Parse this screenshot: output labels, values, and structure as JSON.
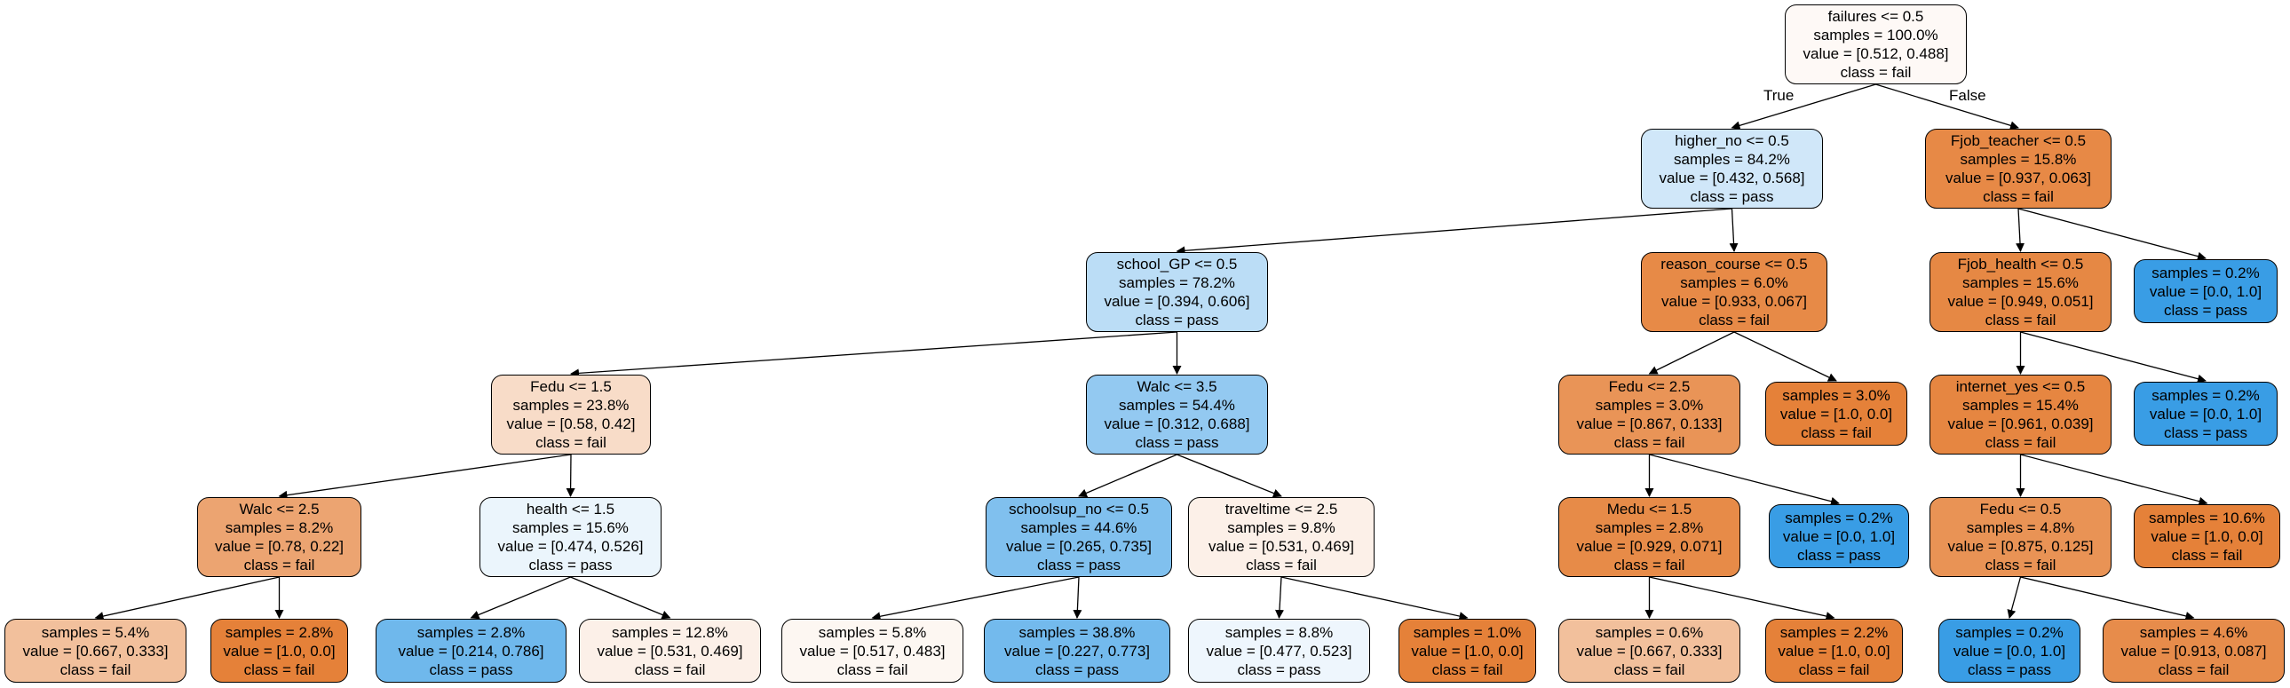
{
  "edge_labels": {
    "true_label": "True",
    "false_label": "False"
  },
  "nodes": {
    "root": {
      "lines": [
        "failures <= 0.5",
        "samples = 100.0%",
        "value = [0.512, 0.488]",
        "class = fail"
      ],
      "color": "#fef9f6"
    },
    "higher": {
      "lines": [
        "higher_no <= 0.5",
        "samples = 84.2%",
        "value = [0.432, 0.568]",
        "class = pass"
      ],
      "color": "#d0e7f9"
    },
    "fjob_teacher": {
      "lines": [
        "Fjob_teacher <= 0.5",
        "samples = 15.8%",
        "value = [0.937, 0.063]",
        "class = fail"
      ],
      "color": "#e78946"
    },
    "school_gp": {
      "lines": [
        "school_GP <= 0.5",
        "samples = 78.2%",
        "value = [0.394, 0.606]",
        "class = pass"
      ],
      "color": "#bbddf6"
    },
    "reason_course": {
      "lines": [
        "reason_course <= 0.5",
        "samples = 6.0%",
        "value = [0.933, 0.067]",
        "class = fail"
      ],
      "color": "#e78a47"
    },
    "fjob_health": {
      "lines": [
        "Fjob_health <= 0.5",
        "samples = 15.6%",
        "value = [0.949, 0.051]",
        "class = fail"
      ],
      "color": "#e68844"
    },
    "leaf_fjob_teacher_r": {
      "lines": [
        "samples = 0.2%",
        "value = [0.0, 1.0]",
        "class = pass"
      ],
      "color": "#399de5"
    },
    "fedu_15": {
      "lines": [
        "Fedu <= 1.5",
        "samples = 23.8%",
        "value = [0.58, 0.42]",
        "class = fail"
      ],
      "color": "#f8dcc8"
    },
    "walc_35": {
      "lines": [
        "Walc <= 3.5",
        "samples = 54.4%",
        "value = [0.312, 0.688]",
        "class = pass"
      ],
      "color": "#93c9f1"
    },
    "fedu_25": {
      "lines": [
        "Fedu <= 2.5",
        "samples = 3.0%",
        "value = [0.867, 0.133]",
        "class = fail"
      ],
      "color": "#e99457"
    },
    "leaf_reason_r": {
      "lines": [
        "samples = 3.0%",
        "value = [1.0, 0.0]",
        "class = fail"
      ],
      "color": "#e58139"
    },
    "internet": {
      "lines": [
        "internet_yes <= 0.5",
        "samples = 15.4%",
        "value = [0.961, 0.039]",
        "class = fail"
      ],
      "color": "#e68641"
    },
    "leaf_fjob_health_r": {
      "lines": [
        "samples = 0.2%",
        "value = [0.0, 1.0]",
        "class = pass"
      ],
      "color": "#399de5"
    },
    "walc_25": {
      "lines": [
        "Walc <= 2.5",
        "samples = 8.2%",
        "value = [0.78, 0.22]",
        "class = fail"
      ],
      "color": "#eca471"
    },
    "health": {
      "lines": [
        "health <= 1.5",
        "samples = 15.6%",
        "value = [0.474, 0.526]",
        "class = pass"
      ],
      "color": "#ebf5fc"
    },
    "schoolsup": {
      "lines": [
        "schoolsup_no <= 0.5",
        "samples = 44.6%",
        "value = [0.265, 0.735]",
        "class = pass"
      ],
      "color": "#80c0ee"
    },
    "traveltime": {
      "lines": [
        "traveltime <= 2.5",
        "samples = 9.8%",
        "value = [0.531, 0.469]",
        "class = fail"
      ],
      "color": "#fcf0e8"
    },
    "medu": {
      "lines": [
        "Medu <= 1.5",
        "samples = 2.8%",
        "value = [0.929, 0.071]",
        "class = fail"
      ],
      "color": "#e78b48"
    },
    "leaf_fedu25_r": {
      "lines": [
        "samples = 0.2%",
        "value = [0.0, 1.0]",
        "class = pass"
      ],
      "color": "#399de5"
    },
    "fedu_05": {
      "lines": [
        "Fedu <= 0.5",
        "samples = 4.8%",
        "value = [0.875, 0.125]",
        "class = fail"
      ],
      "color": "#e99355"
    },
    "leaf_internet_r": {
      "lines": [
        "samples = 10.6%",
        "value = [1.0, 0.0]",
        "class = fail"
      ],
      "color": "#e58139"
    },
    "leaf_1": {
      "lines": [
        "samples = 5.4%",
        "value = [0.667, 0.333]",
        "class = fail"
      ],
      "color": "#f2c09c"
    },
    "leaf_2": {
      "lines": [
        "samples = 2.8%",
        "value = [1.0, 0.0]",
        "class = fail"
      ],
      "color": "#e58139"
    },
    "leaf_3": {
      "lines": [
        "samples = 2.8%",
        "value = [0.214, 0.786]",
        "class = pass"
      ],
      "color": "#6fb8ec"
    },
    "leaf_4": {
      "lines": [
        "samples = 12.8%",
        "value = [0.531, 0.469]",
        "class = fail"
      ],
      "color": "#fcf0e8"
    },
    "leaf_5": {
      "lines": [
        "samples = 5.8%",
        "value = [0.517, 0.483]",
        "class = fail"
      ],
      "color": "#fdf7f2"
    },
    "leaf_6": {
      "lines": [
        "samples = 38.8%",
        "value = [0.227, 0.773]",
        "class = pass"
      ],
      "color": "#73baed"
    },
    "leaf_7": {
      "lines": [
        "samples = 8.8%",
        "value = [0.477, 0.523]",
        "class = pass"
      ],
      "color": "#eef6fd"
    },
    "leaf_8": {
      "lines": [
        "samples = 1.0%",
        "value = [1.0, 0.0]",
        "class = fail"
      ],
      "color": "#e58139"
    },
    "leaf_9": {
      "lines": [
        "samples = 0.6%",
        "value = [0.667, 0.333]",
        "class = fail"
      ],
      "color": "#f2c09c"
    },
    "leaf_10": {
      "lines": [
        "samples = 2.2%",
        "value = [1.0, 0.0]",
        "class = fail"
      ],
      "color": "#e58139"
    },
    "leaf_11": {
      "lines": [
        "samples = 0.2%",
        "value = [0.0, 1.0]",
        "class = pass"
      ],
      "color": "#399de5"
    },
    "leaf_12": {
      "lines": [
        "samples = 4.6%",
        "value = [0.913, 0.087]",
        "class = fail"
      ],
      "color": "#e78c4b"
    }
  }
}
